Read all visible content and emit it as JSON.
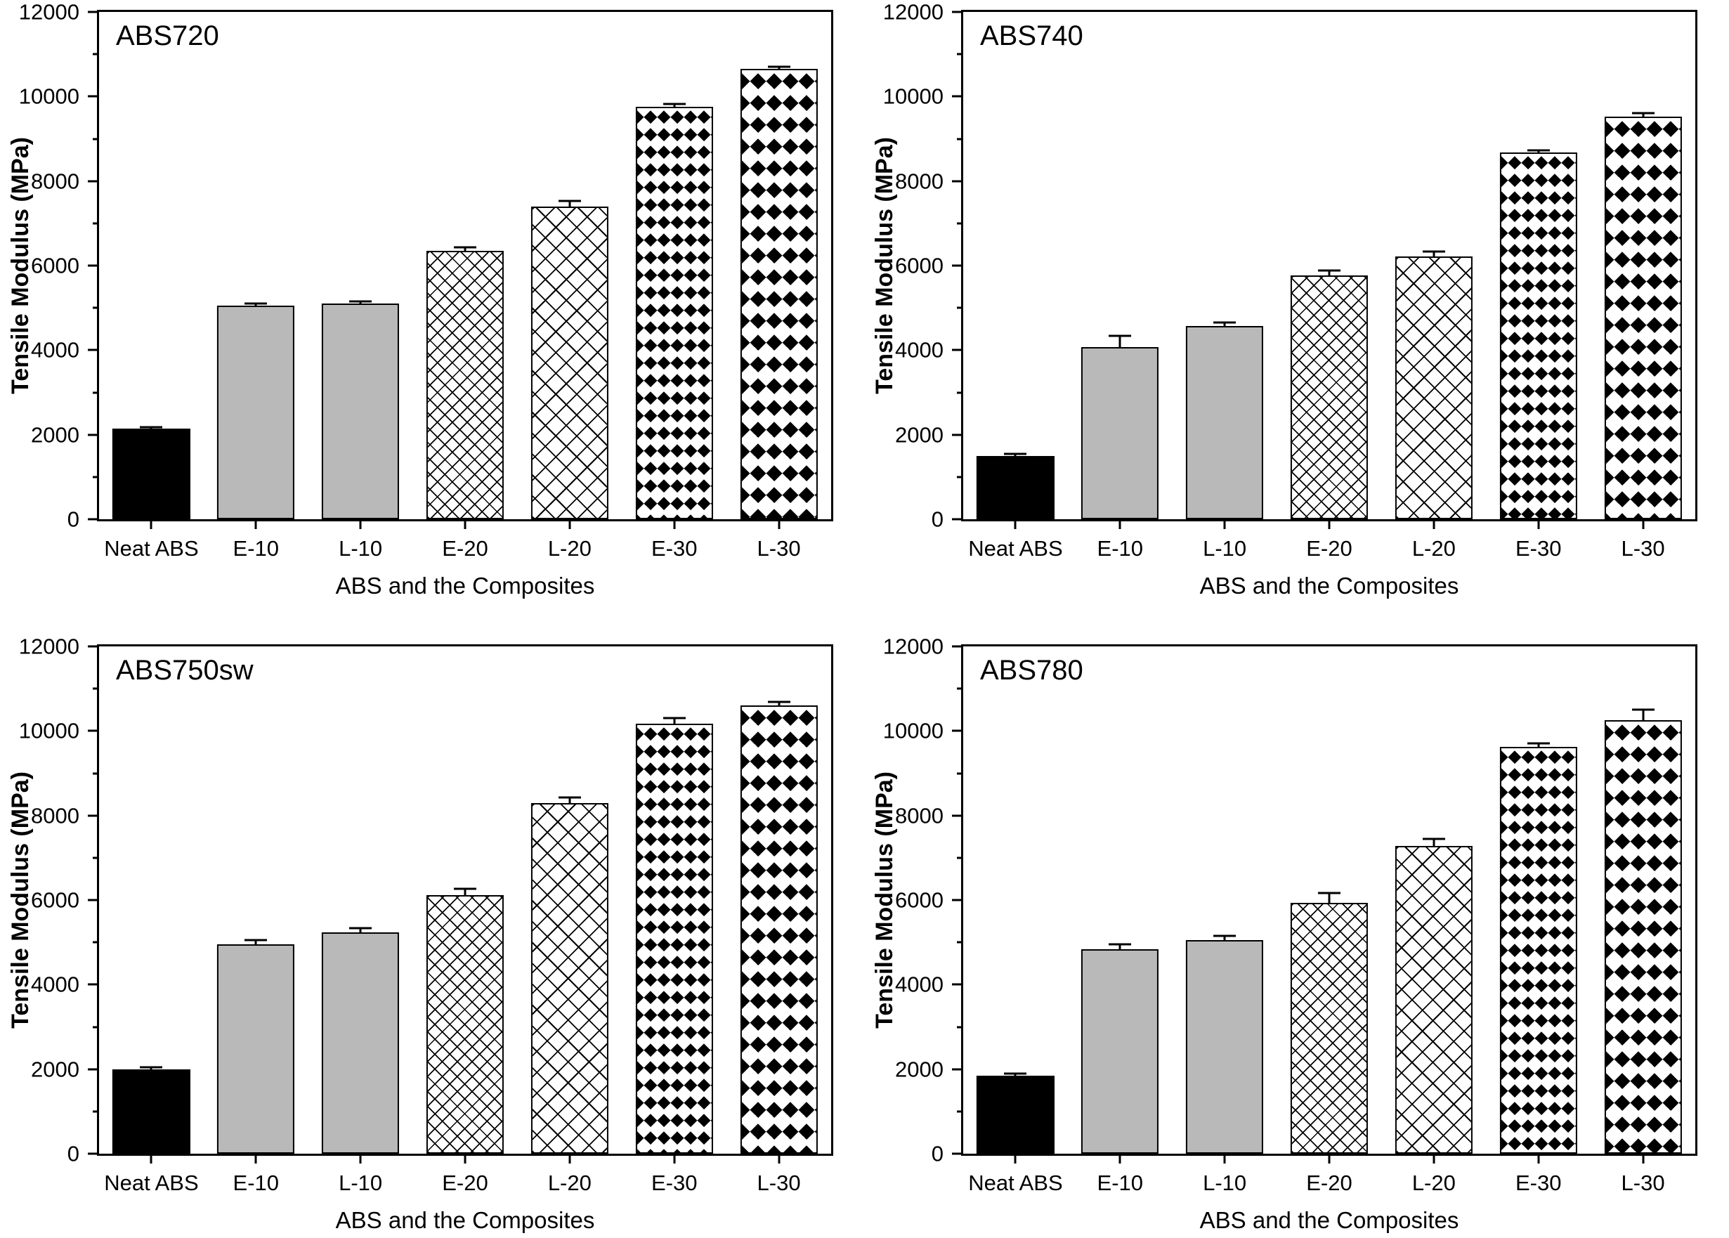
{
  "figure": {
    "background": "#ffffff",
    "layout": "2x2-grid"
  },
  "colors": {
    "bar_black": "#000000",
    "bar_gray": "#b9b9b9",
    "pattern_foreground": "#000000",
    "pattern_background": "#ffffff",
    "axis": "#000000"
  },
  "bar_styles": [
    "solid-black",
    "solid-gray",
    "solid-gray",
    "mesh-fine",
    "mesh-coarse",
    "diamond-small",
    "diamond-large"
  ],
  "chart_data": [
    {
      "type": "bar",
      "title": "ABS720",
      "xlabel": "ABS and the Composites",
      "ylabel": "Tensile Modulus (MPa)",
      "ylim": [
        0,
        12000
      ],
      "yticks": [
        0,
        2000,
        4000,
        6000,
        8000,
        10000,
        12000
      ],
      "yminor_step": 1000,
      "grid": false,
      "categories": [
        "Neat ABS",
        "E-10",
        "L-10",
        "E-20",
        "L-20",
        "E-30",
        "L-30"
      ],
      "values": [
        2150,
        5050,
        5100,
        6350,
        7400,
        9750,
        10650
      ],
      "errors": [
        30,
        60,
        60,
        90,
        130,
        80,
        60
      ]
    },
    {
      "type": "bar",
      "title": "ABS740",
      "xlabel": "ABS and the Composites",
      "ylabel": "Tensile Modulus (MPa)",
      "ylim": [
        0,
        12000
      ],
      "yticks": [
        0,
        2000,
        4000,
        6000,
        8000,
        10000,
        12000
      ],
      "yminor_step": 1000,
      "grid": false,
      "categories": [
        "Neat ABS",
        "E-10",
        "L-10",
        "E-20",
        "L-20",
        "E-30",
        "L-30"
      ],
      "values": [
        1500,
        4080,
        4570,
        5760,
        6220,
        8680,
        9530
      ],
      "errors": [
        40,
        250,
        90,
        120,
        110,
        50,
        80
      ]
    },
    {
      "type": "bar",
      "title": "ABS750sw",
      "xlabel": "ABS and the Composites",
      "ylabel": "Tensile Modulus (MPa)",
      "ylim": [
        0,
        12000
      ],
      "yticks": [
        0,
        2000,
        4000,
        6000,
        8000,
        10000,
        12000
      ],
      "yminor_step": 1000,
      "grid": false,
      "categories": [
        "Neat ABS",
        "E-10",
        "L-10",
        "E-20",
        "L-20",
        "E-30",
        "L-30"
      ],
      "values": [
        2000,
        4950,
        5230,
        6110,
        8300,
        10180,
        10600
      ],
      "errors": [
        50,
        110,
        110,
        160,
        130,
        130,
        80
      ]
    },
    {
      "type": "bar",
      "title": "ABS780",
      "xlabel": "ABS and the Composites",
      "ylabel": "Tensile Modulus (MPa)",
      "ylim": [
        0,
        12000
      ],
      "yticks": [
        0,
        2000,
        4000,
        6000,
        8000,
        10000,
        12000
      ],
      "yminor_step": 1000,
      "grid": false,
      "categories": [
        "Neat ABS",
        "E-10",
        "L-10",
        "E-20",
        "L-20",
        "E-30",
        "L-30"
      ],
      "values": [
        1850,
        4830,
        5060,
        5930,
        7280,
        9620,
        10250
      ],
      "errors": [
        40,
        130,
        90,
        230,
        160,
        90,
        250
      ]
    }
  ]
}
